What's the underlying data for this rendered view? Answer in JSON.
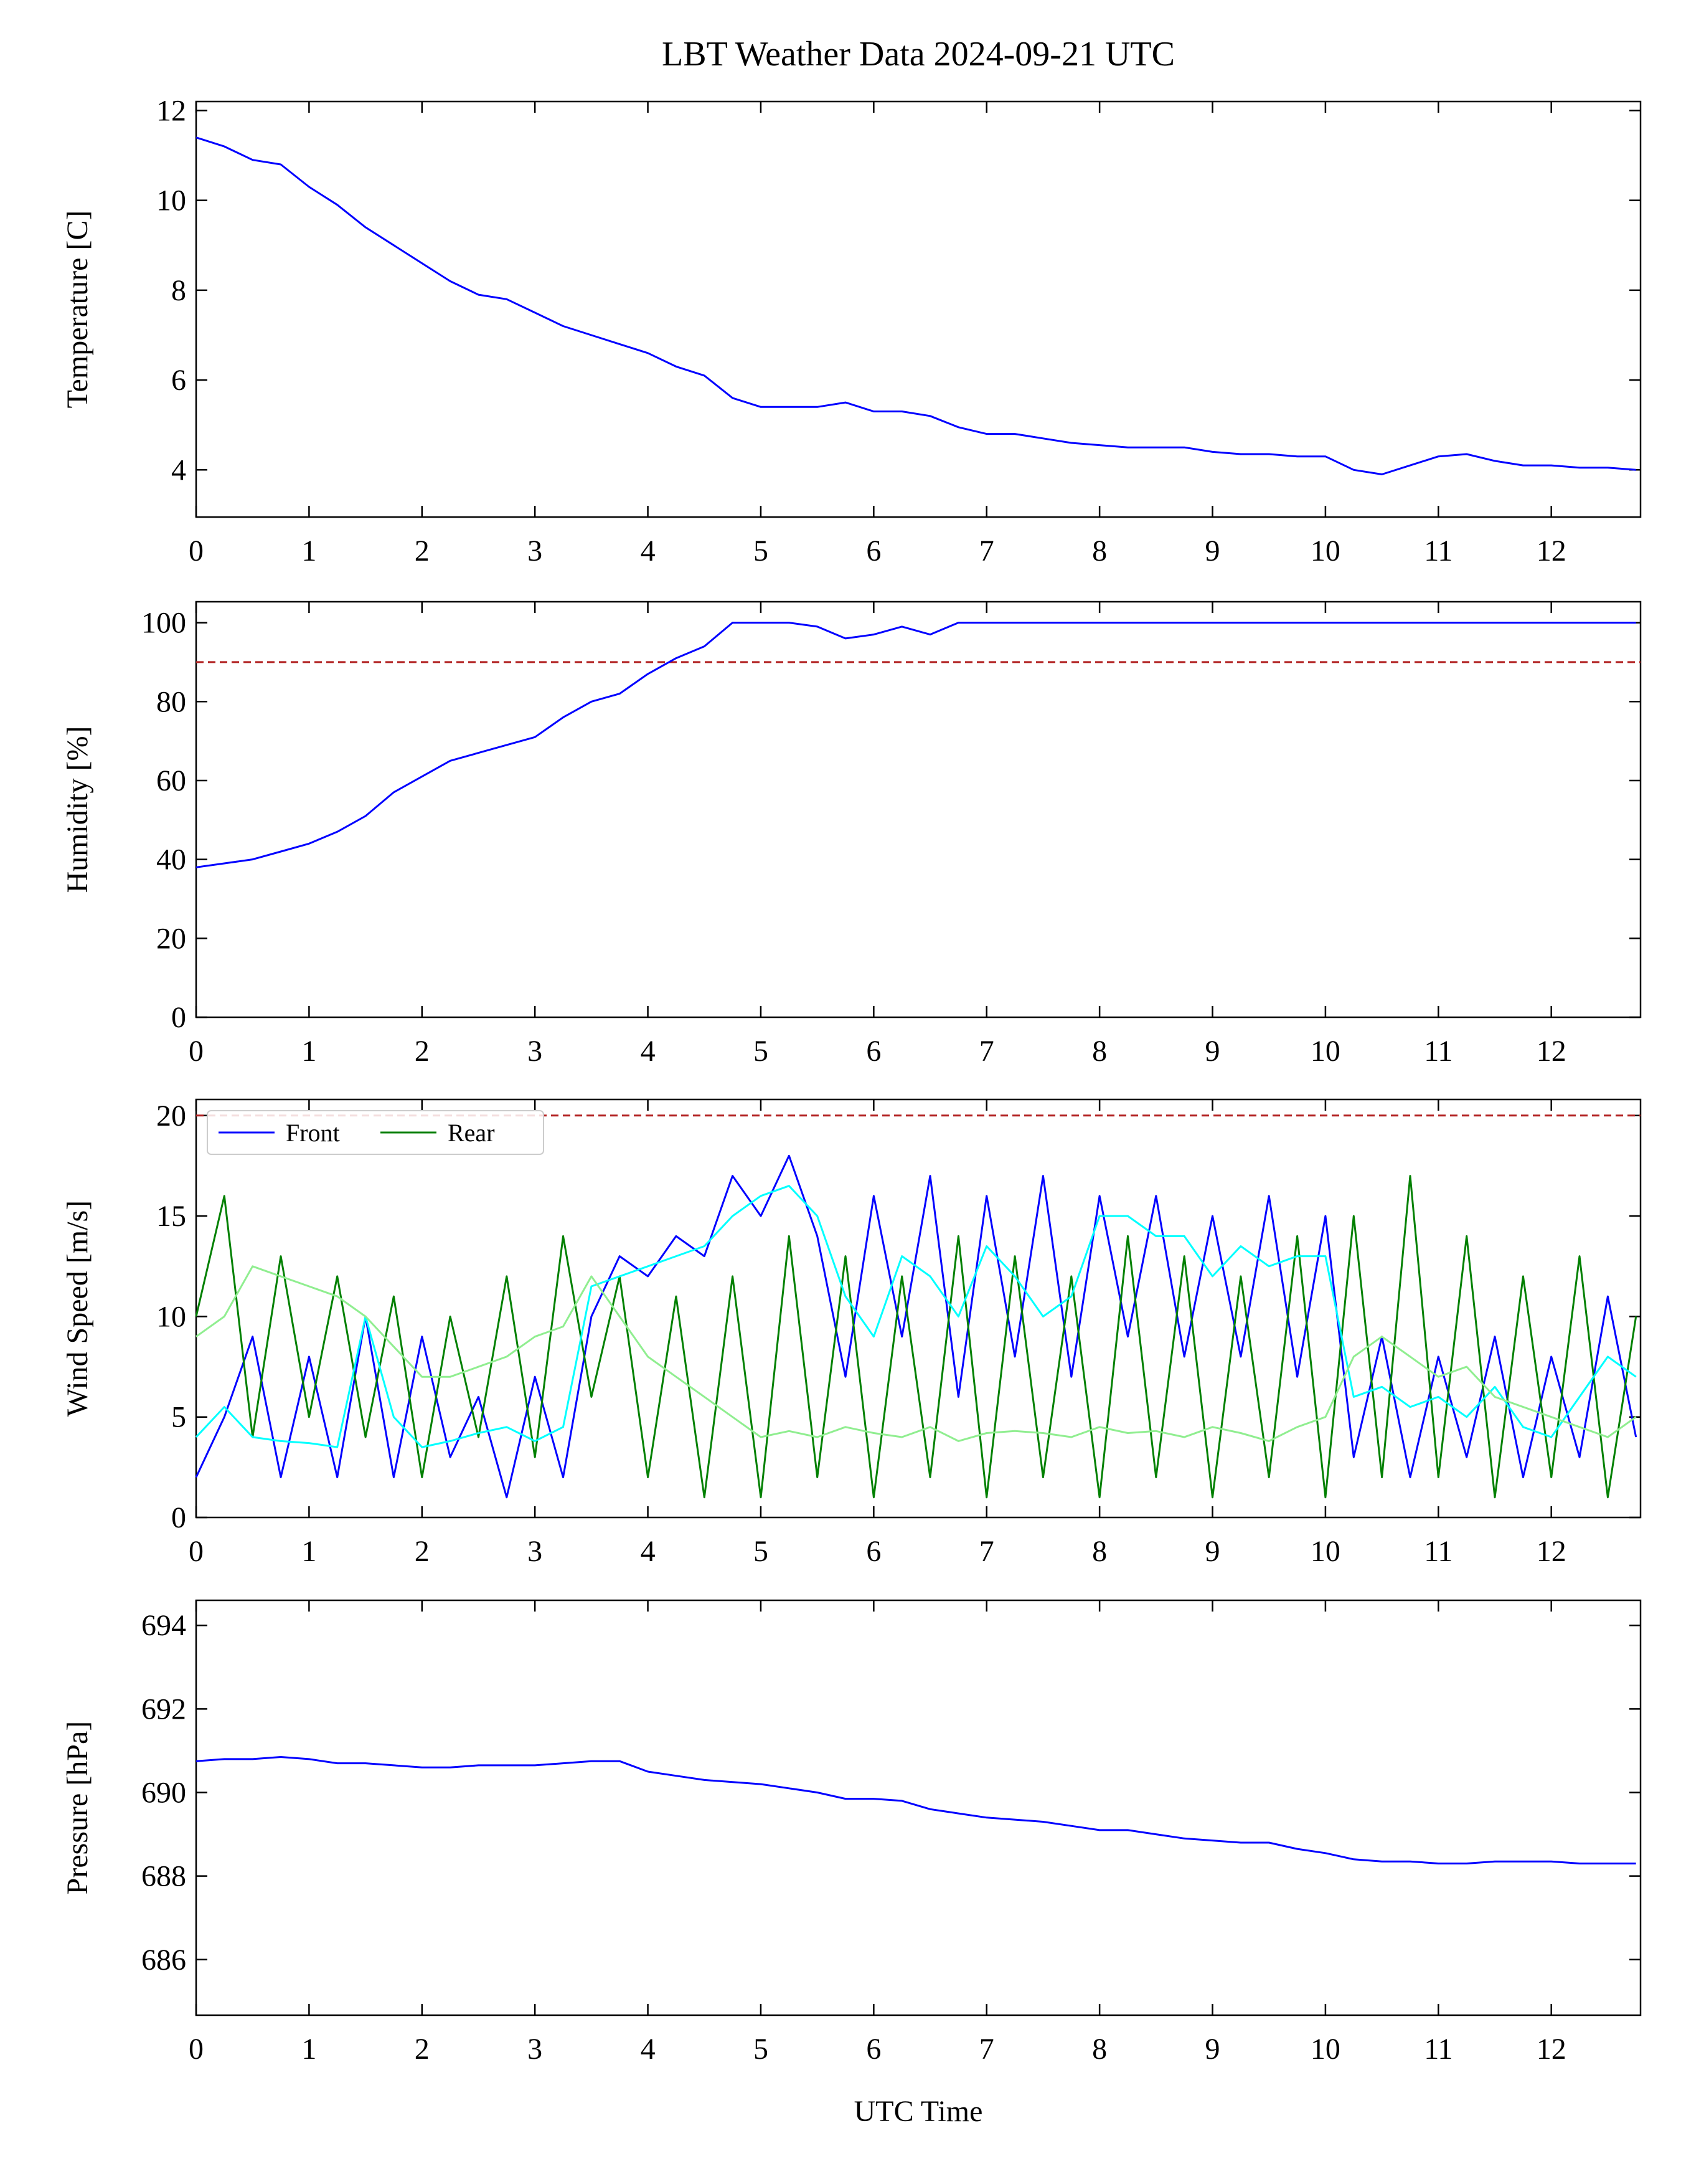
{
  "chart_data": [
    {
      "type": "line",
      "title": "LBT Weather Data 2024-09-21 UTC",
      "ylabel": "Temperature [C]",
      "x": [
        0,
        0.25,
        0.5,
        0.75,
        1,
        1.25,
        1.5,
        1.75,
        2,
        2.25,
        2.5,
        2.75,
        3,
        3.25,
        3.5,
        3.75,
        4,
        4.25,
        4.5,
        4.75,
        5,
        5.25,
        5.5,
        5.75,
        6,
        6.25,
        6.5,
        6.75,
        7,
        7.25,
        7.5,
        7.75,
        8,
        8.25,
        8.5,
        8.75,
        9,
        9.25,
        9.5,
        9.75,
        10,
        10.25,
        10.5,
        10.75,
        11,
        11.25,
        11.5,
        11.75,
        12,
        12.25,
        12.5,
        12.75
      ],
      "series": [
        {
          "color": "#0000ff",
          "values": [
            11.4,
            11.2,
            10.9,
            10.8,
            10.3,
            9.9,
            9.4,
            9.0,
            8.6,
            8.2,
            7.9,
            7.8,
            7.5,
            7.2,
            7.0,
            6.8,
            6.6,
            6.3,
            6.1,
            5.6,
            5.4,
            5.4,
            5.4,
            5.5,
            5.3,
            5.3,
            5.2,
            4.95,
            4.8,
            4.8,
            4.7,
            4.6,
            4.55,
            4.5,
            4.5,
            4.5,
            4.4,
            4.35,
            4.35,
            4.3,
            4.3,
            4.0,
            3.9,
            4.1,
            4.3,
            4.35,
            4.2,
            4.1,
            4.1,
            4.05,
            4.05,
            4.0
          ]
        }
      ],
      "xlim": [
        0,
        12.79
      ],
      "xticks": [
        0,
        1,
        2,
        3,
        4,
        5,
        6,
        7,
        8,
        9,
        10,
        11,
        12
      ],
      "ylim": [
        2.95,
        12.2
      ],
      "yticks": [
        4,
        6,
        8,
        10,
        12
      ]
    },
    {
      "type": "line",
      "ylabel": "Humidity [%]",
      "x": [
        0,
        0.25,
        0.5,
        0.75,
        1,
        1.25,
        1.5,
        1.75,
        2,
        2.25,
        2.5,
        2.75,
        3,
        3.25,
        3.5,
        3.75,
        4,
        4.25,
        4.5,
        4.75,
        5,
        5.25,
        5.5,
        5.75,
        6,
        6.25,
        6.5,
        6.75,
        7,
        7.25,
        7.5,
        7.75,
        8,
        8.25,
        8.5,
        8.75,
        9,
        9.25,
        9.5,
        9.75,
        10,
        10.25,
        10.5,
        10.75,
        11,
        11.25,
        11.5,
        11.75,
        12,
        12.25,
        12.5,
        12.75
      ],
      "series": [
        {
          "color": "#0000ff",
          "values": [
            38,
            39,
            40,
            42,
            44,
            47,
            51,
            57,
            61,
            65,
            67,
            69,
            71,
            76,
            80,
            82,
            87,
            91,
            94,
            100,
            100,
            100,
            99,
            96,
            97,
            99,
            97,
            100,
            100,
            100,
            100,
            100,
            100,
            100,
            100,
            100,
            100,
            100,
            100,
            100,
            100,
            100,
            100,
            100,
            100,
            100,
            100,
            100,
            100,
            100,
            100,
            100
          ]
        }
      ],
      "hlines": [
        {
          "value": 90,
          "color": "#b22222"
        }
      ],
      "xlim": [
        0,
        12.79
      ],
      "xticks": [
        0,
        1,
        2,
        3,
        4,
        5,
        6,
        7,
        8,
        9,
        10,
        11,
        12
      ],
      "ylim": [
        0,
        105.3
      ],
      "yticks": [
        0,
        20,
        40,
        60,
        80,
        100
      ]
    },
    {
      "type": "line",
      "ylabel": "Wind Speed [m/s]",
      "legend": "upper left",
      "x": [
        0,
        0.25,
        0.5,
        0.75,
        1,
        1.25,
        1.5,
        1.75,
        2,
        2.25,
        2.5,
        2.75,
        3,
        3.25,
        3.5,
        3.75,
        4,
        4.25,
        4.5,
        4.75,
        5,
        5.25,
        5.5,
        5.75,
        6,
        6.25,
        6.5,
        6.75,
        7,
        7.25,
        7.5,
        7.75,
        8,
        8.25,
        8.5,
        8.75,
        9,
        9.25,
        9.5,
        9.75,
        10,
        10.25,
        10.5,
        10.75,
        11,
        11.25,
        11.5,
        11.75,
        12,
        12.25,
        12.5,
        12.75
      ],
      "series": [
        {
          "name": "Front",
          "color": "#0000ff",
          "values": [
            2,
            5,
            9,
            2,
            8,
            2,
            10,
            2,
            9,
            3,
            6,
            1,
            7,
            2,
            10,
            13,
            12,
            14,
            13,
            17,
            15,
            18,
            14,
            7,
            16,
            9,
            17,
            6,
            16,
            8,
            17,
            7,
            16,
            9,
            16,
            8,
            15,
            8,
            16,
            7,
            15,
            3,
            9,
            2,
            8,
            3,
            9,
            2,
            8,
            3,
            11,
            4
          ]
        },
        {
          "name": "Rear",
          "color": "#008000",
          "values": [
            10,
            16,
            4,
            13,
            5,
            12,
            4,
            11,
            2,
            10,
            4,
            12,
            3,
            14,
            6,
            12,
            2,
            11,
            1,
            12,
            1,
            14,
            2,
            13,
            1,
            12,
            2,
            14,
            1,
            13,
            2,
            12,
            1,
            14,
            2,
            13,
            1,
            12,
            2,
            14,
            1,
            15,
            2,
            17,
            2,
            14,
            1,
            12,
            2,
            13,
            1,
            10
          ]
        },
        {
          "color": "#00ffff",
          "values": [
            4,
            5.5,
            4,
            3.8,
            3.7,
            3.5,
            10,
            5,
            3.5,
            3.8,
            4.2,
            4.5,
            3.8,
            4.5,
            11.5,
            12,
            12.5,
            13,
            13.5,
            15,
            16,
            16.5,
            15,
            11,
            9,
            13,
            12,
            10,
            13.5,
            12,
            10,
            11,
            15,
            15,
            14,
            14,
            12,
            13.5,
            12.5,
            13,
            13,
            6,
            6.5,
            5.5,
            6,
            5,
            6.5,
            4.5,
            4,
            6,
            8,
            7
          ]
        },
        {
          "color": "#90ee90",
          "values": [
            9,
            10,
            12.5,
            12,
            11.5,
            11,
            10,
            8.5,
            7,
            7,
            7.5,
            8,
            9,
            9.5,
            12,
            10,
            8,
            7,
            6,
            5,
            4,
            4.3,
            4,
            4.5,
            4.2,
            4,
            4.5,
            3.8,
            4.2,
            4.3,
            4.2,
            4,
            4.5,
            4.2,
            4.3,
            4,
            4.5,
            4.2,
            3.8,
            4.5,
            5,
            8,
            9,
            8,
            7,
            7.5,
            6,
            5.5,
            5,
            4.5,
            4,
            5
          ]
        }
      ],
      "hlines": [
        {
          "value": 20,
          "color": "#b22222"
        }
      ],
      "xlim": [
        0,
        12.79
      ],
      "xticks": [
        0,
        1,
        2,
        3,
        4,
        5,
        6,
        7,
        8,
        9,
        10,
        11,
        12
      ],
      "ylim": [
        0,
        20.8
      ],
      "yticks": [
        0,
        5,
        10,
        15,
        20
      ]
    },
    {
      "type": "line",
      "ylabel": "Pressure [hPa]",
      "xlabel": "UTC Time",
      "x": [
        0,
        0.25,
        0.5,
        0.75,
        1,
        1.25,
        1.5,
        1.75,
        2,
        2.25,
        2.5,
        2.75,
        3,
        3.25,
        3.5,
        3.75,
        4,
        4.25,
        4.5,
        4.75,
        5,
        5.25,
        5.5,
        5.75,
        6,
        6.25,
        6.5,
        6.75,
        7,
        7.25,
        7.5,
        7.75,
        8,
        8.25,
        8.5,
        8.75,
        9,
        9.25,
        9.5,
        9.75,
        10,
        10.25,
        10.5,
        10.75,
        11,
        11.25,
        11.5,
        11.75,
        12,
        12.25,
        12.5,
        12.75
      ],
      "series": [
        {
          "color": "#0000ff",
          "values": [
            690.75,
            690.8,
            690.8,
            690.85,
            690.8,
            690.7,
            690.7,
            690.65,
            690.6,
            690.6,
            690.65,
            690.65,
            690.65,
            690.7,
            690.75,
            690.75,
            690.5,
            690.4,
            690.3,
            690.25,
            690.2,
            690.1,
            690.0,
            689.85,
            689.85,
            689.8,
            689.6,
            689.5,
            689.4,
            689.35,
            689.3,
            689.2,
            689.1,
            689.1,
            689.0,
            688.9,
            688.85,
            688.8,
            688.8,
            688.65,
            688.55,
            688.4,
            688.35,
            688.35,
            688.3,
            688.3,
            688.35,
            688.35,
            688.35,
            688.3,
            688.3,
            688.3
          ]
        }
      ],
      "xlim": [
        0,
        12.79
      ],
      "xticks": [
        0,
        1,
        2,
        3,
        4,
        5,
        6,
        7,
        8,
        9,
        10,
        11,
        12
      ],
      "ylim": [
        684.67,
        694.6
      ],
      "yticks": [
        686,
        688,
        690,
        692,
        694
      ]
    }
  ]
}
